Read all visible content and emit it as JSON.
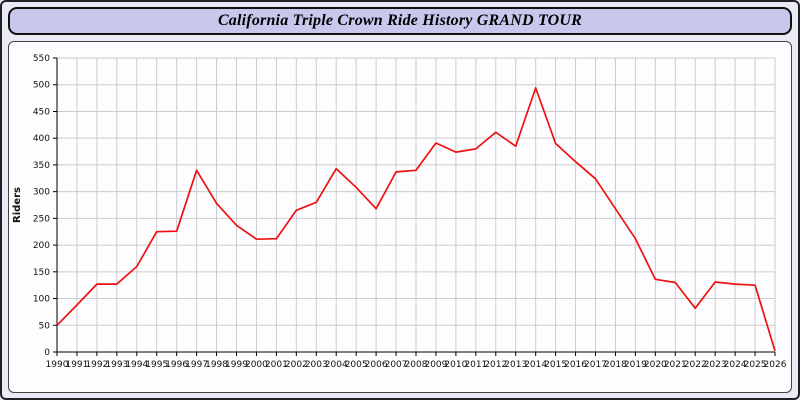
{
  "header": {
    "title": "California Triple Crown Ride History GRAND TOUR"
  },
  "colors": {
    "line": "#ee1111",
    "grid": "#cccccc",
    "axis": "#000000",
    "panel_bg": "#fdfdff",
    "page_bg": "#e9eaf6",
    "title_bg": "#c7c8ec"
  },
  "chart_data": {
    "type": "line",
    "title": "California Triple Crown Ride History GRAND TOUR",
    "xlabel": "",
    "ylabel": "Riders",
    "ylim": [
      0,
      550
    ],
    "ytick_step": 50,
    "grid": true,
    "legend": "none",
    "x": [
      1990,
      1991,
      1992,
      1993,
      1994,
      1995,
      1996,
      1997,
      1998,
      1999,
      2000,
      2001,
      2002,
      2003,
      2004,
      2005,
      2006,
      2007,
      2008,
      2009,
      2010,
      2011,
      2012,
      2013,
      2014,
      2015,
      2016,
      2017,
      2018,
      2019,
      2020,
      2021,
      2022,
      2023,
      2024,
      2025,
      2026
    ],
    "series": [
      {
        "name": "Riders",
        "values": [
          50,
          88,
          127,
          127,
          160,
          225,
          226,
          340,
          278,
          237,
          211,
          212,
          265,
          280,
          343,
          308,
          268,
          337,
          340,
          391,
          374,
          380,
          411,
          385,
          494,
          390,
          356,
          324,
          268,
          212,
          136,
          130,
          82,
          131,
          127,
          125,
          2
        ]
      }
    ]
  }
}
